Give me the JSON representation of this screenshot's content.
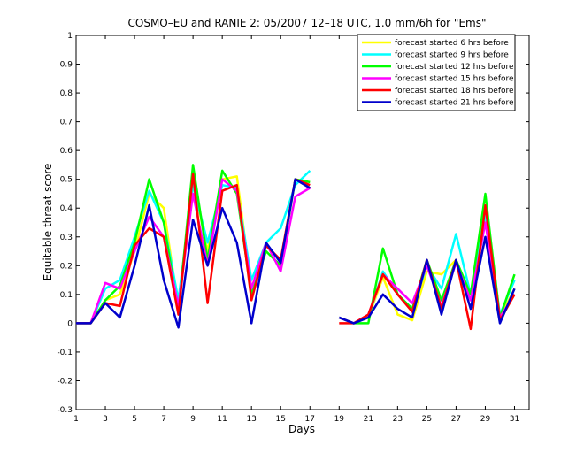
{
  "chart_data": {
    "type": "line",
    "title": "COSMO–EU and RANIE 2: 05/2007 12–18 UTC, 1.0 mm/6h for \"Ems\"",
    "xlabel": "Days",
    "ylabel": "Equitable threat score",
    "xlim": [
      1,
      32
    ],
    "ylim": [
      -0.3,
      1
    ],
    "xticks": [
      "1",
      "3",
      "5",
      "7",
      "9",
      "11",
      "13",
      "15",
      "17",
      "19",
      "21",
      "23",
      "25",
      "27",
      "29",
      "31"
    ],
    "yticks": [
      "-0.3",
      "-0.2",
      "-0.1",
      "0",
      "0.1",
      "0.2",
      "0.3",
      "0.4",
      "0.5",
      "0.6",
      "0.7",
      "0.8",
      "0.9",
      "1"
    ],
    "legend_position": "top-right",
    "x": [
      1,
      2,
      3,
      4,
      5,
      6,
      7,
      8,
      9,
      10,
      11,
      12,
      13,
      14,
      15,
      16,
      17,
      18,
      19,
      20,
      21,
      22,
      23,
      24,
      25,
      26,
      27,
      28,
      29,
      30,
      31
    ],
    "series": [
      {
        "name": "forecast started 6 hrs before",
        "color": "#ffff00",
        "values": [
          0,
          0,
          0.08,
          0.1,
          0.25,
          0.45,
          0.4,
          0.05,
          0.5,
          0.25,
          0.5,
          0.51,
          0.12,
          0.27,
          0.22,
          0.5,
          0.47,
          null,
          0.02,
          0,
          0.02,
          0.16,
          0.03,
          0.01,
          0.18,
          0.17,
          0.22,
          0.1,
          0.4,
          0.02,
          0.12
        ]
      },
      {
        "name": "forecast started 9 hrs before",
        "color": "#00ffff",
        "values": [
          0,
          0,
          0.12,
          0.15,
          0.3,
          0.46,
          0.35,
          0.08,
          0.48,
          0.28,
          0.48,
          0.47,
          0.15,
          0.28,
          0.33,
          0.48,
          0.53,
          null,
          0.02,
          0,
          0.02,
          0.18,
          0.1,
          0.05,
          0.2,
          0.12,
          0.31,
          0.1,
          0.38,
          0.03,
          0.15
        ]
      },
      {
        "name": "forecast started 12 hrs before",
        "color": "#00ff00",
        "values": [
          0,
          0,
          0.08,
          0.13,
          0.28,
          0.5,
          0.35,
          0.04,
          0.55,
          0.22,
          0.53,
          0.45,
          0.1,
          0.25,
          0.2,
          0.5,
          0.49,
          null,
          0.02,
          0,
          0,
          0.26,
          0.1,
          0.05,
          0.22,
          0.08,
          0.22,
          0.1,
          0.45,
          0.02,
          0.17
        ]
      },
      {
        "name": "forecast started 15 hrs before",
        "color": "#ff00ff",
        "values": [
          0,
          0,
          0.14,
          0.12,
          0.25,
          0.37,
          0.3,
          0.06,
          0.45,
          0.2,
          0.5,
          0.46,
          0.12,
          0.28,
          0.18,
          0.44,
          0.47,
          null,
          0.02,
          0,
          0.03,
          0.17,
          0.12,
          0.07,
          0.2,
          0.06,
          0.21,
          0.08,
          0.35,
          0.02,
          0.1
        ]
      },
      {
        "name": "forecast started 18 hrs before",
        "color": "#ff0000",
        "values": [
          0,
          0,
          0.07,
          0.06,
          0.27,
          0.33,
          0.3,
          0.03,
          0.52,
          0.07,
          0.46,
          0.48,
          0.08,
          0.27,
          0.22,
          0.5,
          0.48,
          null,
          0,
          0,
          0.03,
          0.17,
          0.1,
          0.04,
          0.22,
          0.05,
          0.22,
          -0.02,
          0.41,
          0.01,
          0.1
        ]
      },
      {
        "name": "forecast started 21 hrs before",
        "color": "#0000cc",
        "values": [
          0,
          0,
          0.07,
          0.02,
          0.2,
          0.41,
          0.15,
          -0.015,
          0.36,
          0.2,
          0.4,
          0.28,
          0,
          0.28,
          0.21,
          0.5,
          0.47,
          null,
          0.02,
          0,
          0.02,
          0.1,
          0.05,
          0.02,
          0.22,
          0.03,
          0.22,
          0.05,
          0.3,
          0,
          0.12
        ]
      }
    ]
  }
}
